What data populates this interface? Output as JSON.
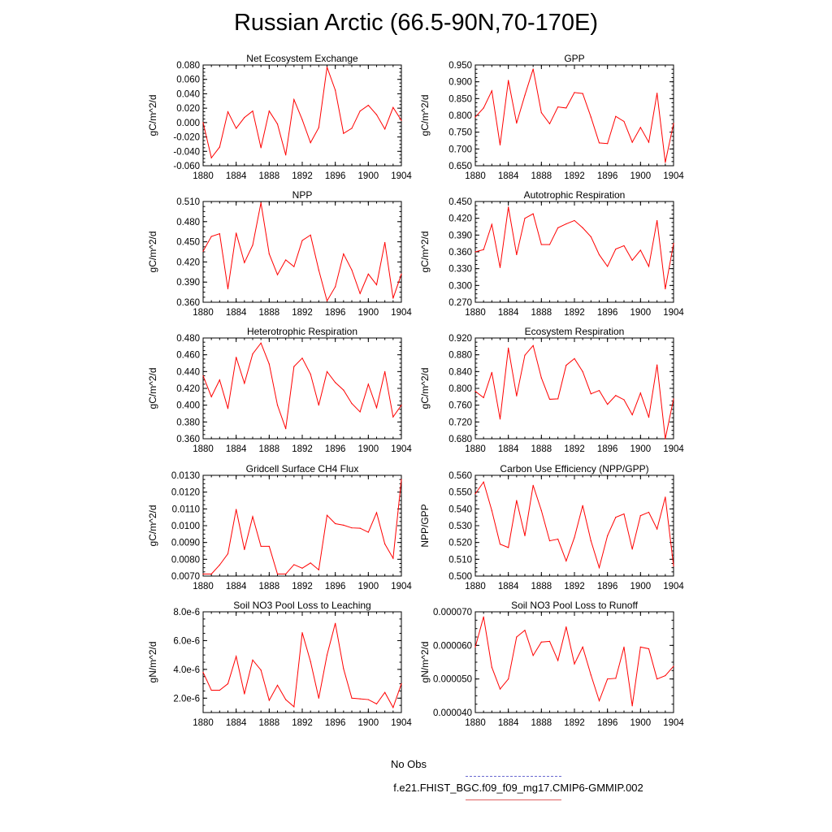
{
  "title": "Russian Arctic (66.5-90N,70-170E)",
  "legend": {
    "obs_label": "No Obs",
    "obs_color": "#6a6ad0",
    "model_label": "f.e21.FHIST_BGC.f09_f09_mg17.CMIP6-GMMIP.002",
    "model_color": "#e06060"
  },
  "series_color": "#ff0000",
  "chart_data": [
    {
      "type": "line",
      "title": "Net Ecosystem Exchange",
      "ylabel": "gC/m^2/d",
      "xlim": [
        1880,
        1904
      ],
      "xticks": [
        1880,
        1884,
        1888,
        1892,
        1896,
        1900,
        1904
      ],
      "ylim": [
        -0.06,
        0.08
      ],
      "yticks": [
        -0.06,
        -0.04,
        -0.02,
        0.0,
        0.02,
        0.04,
        0.06,
        0.08
      ],
      "ytick_labels": [
        "-0.060",
        "-0.040",
        "-0.020",
        "0.000",
        "0.020",
        "0.040",
        "0.060",
        "0.080"
      ],
      "x": [
        1880,
        1881,
        1882,
        1883,
        1884,
        1885,
        1886,
        1887,
        1888,
        1889,
        1890,
        1891,
        1892,
        1893,
        1894,
        1895,
        1896,
        1897,
        1898,
        1899,
        1900,
        1901,
        1902,
        1903,
        1904
      ],
      "values": [
        0.0,
        -0.049,
        -0.034,
        0.015,
        -0.008,
        0.007,
        0.016,
        -0.035,
        0.016,
        -0.002,
        -0.045,
        0.032,
        0.004,
        -0.028,
        -0.007,
        0.077,
        0.045,
        -0.015,
        -0.008,
        0.016,
        0.024,
        0.011,
        -0.009,
        0.021,
        0.003
      ]
    },
    {
      "type": "line",
      "title": "GPP",
      "ylabel": "gC/m^2/d",
      "xlim": [
        1880,
        1904
      ],
      "xticks": [
        1880,
        1884,
        1888,
        1892,
        1896,
        1900,
        1904
      ],
      "ylim": [
        0.65,
        0.95
      ],
      "yticks": [
        0.65,
        0.7,
        0.75,
        0.8,
        0.85,
        0.9,
        0.95
      ],
      "ytick_labels": [
        "0.650",
        "0.700",
        "0.750",
        "0.800",
        "0.850",
        "0.900",
        "0.950"
      ],
      "x": [
        1880,
        1881,
        1882,
        1883,
        1884,
        1885,
        1886,
        1887,
        1888,
        1889,
        1890,
        1891,
        1892,
        1893,
        1894,
        1895,
        1896,
        1897,
        1898,
        1899,
        1900,
        1901,
        1902,
        1903,
        1904
      ],
      "values": [
        0.795,
        0.822,
        0.873,
        0.712,
        0.904,
        0.777,
        0.86,
        0.938,
        0.808,
        0.775,
        0.825,
        0.822,
        0.868,
        0.865,
        0.795,
        0.718,
        0.716,
        0.797,
        0.782,
        0.72,
        0.764,
        0.72,
        0.866,
        0.66,
        0.776
      ]
    },
    {
      "type": "line",
      "title": "NPP",
      "ylabel": "gC/m^2/d",
      "xlim": [
        1880,
        1904
      ],
      "xticks": [
        1880,
        1884,
        1888,
        1892,
        1896,
        1900,
        1904
      ],
      "ylim": [
        0.36,
        0.51
      ],
      "yticks": [
        0.36,
        0.39,
        0.42,
        0.45,
        0.48,
        0.51
      ],
      "ytick_labels": [
        "0.360",
        "0.390",
        "0.420",
        "0.450",
        "0.480",
        "0.510"
      ],
      "x": [
        1880,
        1881,
        1882,
        1883,
        1884,
        1885,
        1886,
        1887,
        1888,
        1889,
        1890,
        1891,
        1892,
        1893,
        1894,
        1895,
        1896,
        1897,
        1898,
        1899,
        1900,
        1901,
        1902,
        1903,
        1904
      ],
      "values": [
        0.436,
        0.458,
        0.462,
        0.38,
        0.463,
        0.419,
        0.445,
        0.508,
        0.432,
        0.401,
        0.423,
        0.413,
        0.452,
        0.46,
        0.408,
        0.362,
        0.383,
        0.432,
        0.408,
        0.373,
        0.402,
        0.386,
        0.449,
        0.366,
        0.402
      ]
    },
    {
      "type": "line",
      "title": "Autotrophic Respiration",
      "ylabel": "gC/m^2/d",
      "xlim": [
        1880,
        1904
      ],
      "xticks": [
        1880,
        1884,
        1888,
        1892,
        1896,
        1900,
        1904
      ],
      "ylim": [
        0.27,
        0.45
      ],
      "yticks": [
        0.27,
        0.3,
        0.33,
        0.36,
        0.39,
        0.42,
        0.45
      ],
      "ytick_labels": [
        "0.270",
        "0.300",
        "0.330",
        "0.360",
        "0.390",
        "0.420",
        "0.450"
      ],
      "x": [
        1880,
        1881,
        1882,
        1883,
        1884,
        1885,
        1886,
        1887,
        1888,
        1889,
        1890,
        1891,
        1892,
        1893,
        1894,
        1895,
        1896,
        1897,
        1898,
        1899,
        1900,
        1901,
        1902,
        1903,
        1904
      ],
      "values": [
        0.36,
        0.364,
        0.409,
        0.332,
        0.44,
        0.355,
        0.42,
        0.428,
        0.373,
        0.373,
        0.403,
        0.41,
        0.416,
        0.403,
        0.387,
        0.355,
        0.334,
        0.365,
        0.371,
        0.345,
        0.363,
        0.334,
        0.416,
        0.294,
        0.375
      ]
    },
    {
      "type": "line",
      "title": "Heterotrophic Respiration",
      "ylabel": "gC/m^2/d",
      "xlim": [
        1880,
        1904
      ],
      "xticks": [
        1880,
        1884,
        1888,
        1892,
        1896,
        1900,
        1904
      ],
      "ylim": [
        0.36,
        0.48
      ],
      "yticks": [
        0.36,
        0.38,
        0.4,
        0.42,
        0.44,
        0.46,
        0.48
      ],
      "ytick_labels": [
        "0.360",
        "0.380",
        "0.400",
        "0.420",
        "0.440",
        "0.460",
        "0.480"
      ],
      "x": [
        1880,
        1881,
        1882,
        1883,
        1884,
        1885,
        1886,
        1887,
        1888,
        1889,
        1890,
        1891,
        1892,
        1893,
        1894,
        1895,
        1896,
        1897,
        1898,
        1899,
        1900,
        1901,
        1902,
        1903,
        1904
      ],
      "values": [
        0.435,
        0.41,
        0.43,
        0.396,
        0.457,
        0.426,
        0.461,
        0.474,
        0.449,
        0.4,
        0.372,
        0.446,
        0.456,
        0.437,
        0.4,
        0.44,
        0.427,
        0.418,
        0.402,
        0.392,
        0.425,
        0.397,
        0.44,
        0.386,
        0.4
      ]
    },
    {
      "type": "line",
      "title": "Ecosystem Respiration",
      "ylabel": "gC/m^2/d",
      "xlim": [
        1880,
        1904
      ],
      "xticks": [
        1880,
        1884,
        1888,
        1892,
        1896,
        1900,
        1904
      ],
      "ylim": [
        0.68,
        0.92
      ],
      "yticks": [
        0.68,
        0.72,
        0.76,
        0.8,
        0.84,
        0.88,
        0.92
      ],
      "ytick_labels": [
        "0.680",
        "0.720",
        "0.760",
        "0.800",
        "0.840",
        "0.880",
        "0.920"
      ],
      "x": [
        1880,
        1881,
        1882,
        1883,
        1884,
        1885,
        1886,
        1887,
        1888,
        1889,
        1890,
        1891,
        1892,
        1893,
        1894,
        1895,
        1896,
        1897,
        1898,
        1899,
        1900,
        1901,
        1902,
        1903,
        1904
      ],
      "values": [
        0.793,
        0.778,
        0.838,
        0.727,
        0.896,
        0.782,
        0.879,
        0.902,
        0.825,
        0.774,
        0.775,
        0.855,
        0.871,
        0.84,
        0.787,
        0.795,
        0.762,
        0.783,
        0.773,
        0.737,
        0.789,
        0.731,
        0.856,
        0.68,
        0.775
      ]
    },
    {
      "type": "line",
      "title": "Gridcell Surface CH4 Flux",
      "ylabel": "gC/m^2/d",
      "xlim": [
        1880,
        1904
      ],
      "xticks": [
        1880,
        1884,
        1888,
        1892,
        1896,
        1900,
        1904
      ],
      "ylim": [
        0.007,
        0.013
      ],
      "yticks": [
        0.007,
        0.008,
        0.009,
        0.01,
        0.011,
        0.012,
        0.013
      ],
      "ytick_labels": [
        "0.0070",
        "0.0080",
        "0.0090",
        "0.0100",
        "0.0110",
        "0.0120",
        "0.0130"
      ],
      "x": [
        1880,
        1881,
        1882,
        1883,
        1884,
        1885,
        1886,
        1887,
        1888,
        1889,
        1890,
        1891,
        1892,
        1893,
        1894,
        1895,
        1896,
        1897,
        1898,
        1899,
        1900,
        1901,
        1902,
        1903,
        1904
      ],
      "values": [
        0.00712,
        0.00712,
        0.00766,
        0.00833,
        0.01097,
        0.00858,
        0.01054,
        0.00877,
        0.00877,
        0.00712,
        0.00712,
        0.00768,
        0.00747,
        0.00778,
        0.00737,
        0.01062,
        0.01012,
        0.01003,
        0.00987,
        0.00985,
        0.00961,
        0.01078,
        0.00891,
        0.00806,
        0.01275
      ]
    },
    {
      "type": "line",
      "title": "Carbon Use Efficiency (NPP/GPP)",
      "ylabel": "NPP/GPP",
      "xlim": [
        1880,
        1904
      ],
      "xticks": [
        1880,
        1884,
        1888,
        1892,
        1896,
        1900,
        1904
      ],
      "ylim": [
        0.5,
        0.56
      ],
      "yticks": [
        0.5,
        0.51,
        0.52,
        0.53,
        0.54,
        0.55,
        0.56
      ],
      "ytick_labels": [
        "0.500",
        "0.510",
        "0.520",
        "0.530",
        "0.540",
        "0.550",
        "0.560"
      ],
      "x": [
        1880,
        1881,
        1882,
        1883,
        1884,
        1885,
        1886,
        1887,
        1888,
        1889,
        1890,
        1891,
        1892,
        1893,
        1894,
        1895,
        1896,
        1897,
        1898,
        1899,
        1900,
        1901,
        1902,
        1903,
        1904
      ],
      "values": [
        0.549,
        0.556,
        0.539,
        0.519,
        0.517,
        0.545,
        0.524,
        0.554,
        0.539,
        0.521,
        0.522,
        0.509,
        0.523,
        0.542,
        0.521,
        0.505,
        0.524,
        0.535,
        0.537,
        0.516,
        0.536,
        0.538,
        0.528,
        0.547,
        0.506
      ]
    },
    {
      "type": "line",
      "title": "Soil NO3 Pool Loss to Leaching",
      "ylabel": "gN/m^2/d",
      "xlim": [
        1880,
        1904
      ],
      "xticks": [
        1880,
        1884,
        1888,
        1892,
        1896,
        1900,
        1904
      ],
      "ylim": [
        1e-06,
        8e-06
      ],
      "yticks": [
        2e-06,
        4e-06,
        6e-06,
        8e-06
      ],
      "ytick_labels": [
        "2.0e-6",
        "4.0e-6",
        "6.0e-6",
        "8.0e-6"
      ],
      "x": [
        1880,
        1881,
        1882,
        1883,
        1884,
        1885,
        1886,
        1887,
        1888,
        1889,
        1890,
        1891,
        1892,
        1893,
        1894,
        1895,
        1896,
        1897,
        1898,
        1899,
        1900,
        1901,
        1902,
        1903,
        1904
      ],
      "values": [
        3.8e-06,
        2.55e-06,
        2.55e-06,
        3e-06,
        4.9e-06,
        2.3e-06,
        4.65e-06,
        3.95e-06,
        1.85e-06,
        2.9e-06,
        1.9e-06,
        1.4e-06,
        6.55e-06,
        4.55e-06,
        2e-06,
        5e-06,
        7.2e-06,
        4.05e-06,
        2e-06,
        1.95e-06,
        1.9e-06,
        1.6e-06,
        2.4e-06,
        1.35e-06,
        3e-06
      ]
    },
    {
      "type": "line",
      "title": "Soil NO3 Pool Loss to Runoff",
      "ylabel": "gN/m^2/d",
      "xlim": [
        1880,
        1904
      ],
      "xticks": [
        1880,
        1884,
        1888,
        1892,
        1896,
        1900,
        1904
      ],
      "ylim": [
        4e-05,
        7e-05
      ],
      "yticks": [
        4e-05,
        5e-05,
        6e-05,
        7e-05
      ],
      "ytick_labels": [
        "0.000040",
        "0.000050",
        "0.000060",
        "0.000070"
      ],
      "x": [
        1880,
        1881,
        1882,
        1883,
        1884,
        1885,
        1886,
        1887,
        1888,
        1889,
        1890,
        1891,
        1892,
        1893,
        1894,
        1895,
        1896,
        1897,
        1898,
        1899,
        1900,
        1901,
        1902,
        1903,
        1904
      ],
      "values": [
        5.95e-05,
        6.85e-05,
        5.35e-05,
        4.7e-05,
        5e-05,
        6.25e-05,
        6.45e-05,
        5.7e-05,
        6.1e-05,
        6.12e-05,
        5.55e-05,
        6.55e-05,
        5.45e-05,
        5.95e-05,
        5.12e-05,
        4.35e-05,
        5e-05,
        5.02e-05,
        5.95e-05,
        4.2e-05,
        5.95e-05,
        5.9e-05,
        5e-05,
        5.1e-05,
        5.38e-05
      ]
    }
  ]
}
